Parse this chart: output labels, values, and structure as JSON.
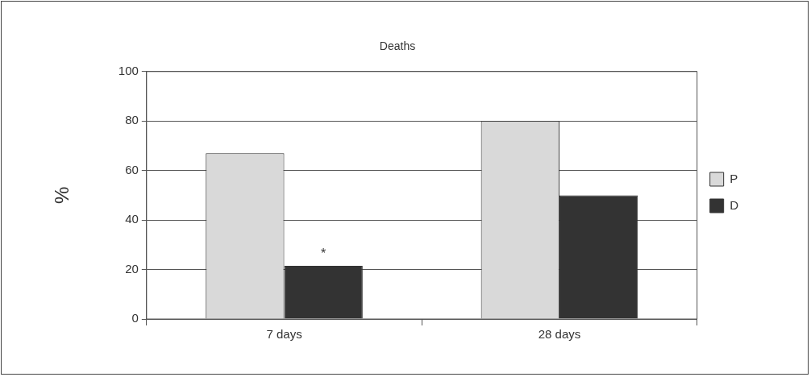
{
  "chart_data": {
    "type": "bar",
    "title": "Deaths",
    "ylabel": "%",
    "categories": [
      "7 days",
      "28 days"
    ],
    "series": [
      {
        "name": "P",
        "color": "#d9d9d9",
        "values": [
          67,
          80
        ]
      },
      {
        "name": "D",
        "color": "#333333",
        "values": [
          21.5,
          50
        ]
      }
    ],
    "ylim": [
      0,
      100
    ],
    "yticks": [
      0,
      20,
      40,
      60,
      80,
      100
    ],
    "grid": "y",
    "legend": "right",
    "annotations": [
      {
        "text": "*",
        "x": "7 days",
        "y": 21.5
      }
    ]
  }
}
